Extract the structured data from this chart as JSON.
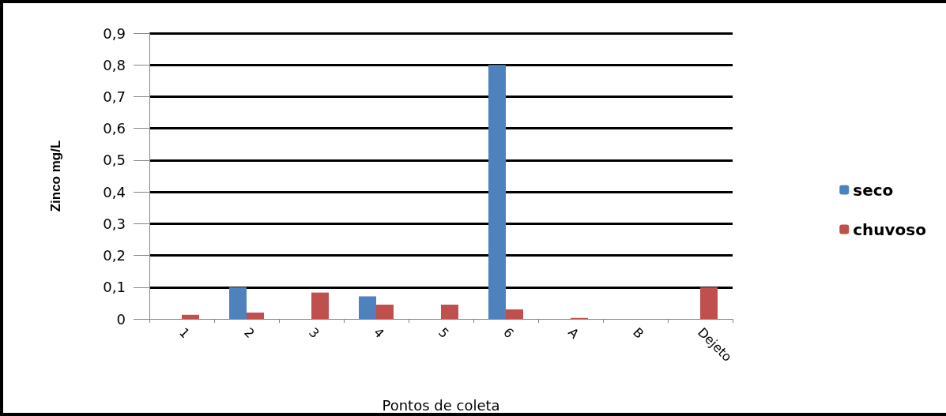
{
  "chart_data": {
    "type": "bar",
    "xlabel": "Pontos de coleta",
    "ylabel": "Zinco mg/L",
    "categories": [
      "1",
      "2",
      "3",
      "4",
      "5",
      "6",
      "A",
      "B",
      "Dejeto"
    ],
    "series": [
      {
        "name": "seco",
        "color": "#4f81bd",
        "values": [
          null,
          0.1,
          null,
          0.071,
          null,
          0.8,
          null,
          null,
          null
        ]
      },
      {
        "name": "chuvoso",
        "color": "#c0504d",
        "values": [
          0.013,
          0.02,
          0.083,
          0.045,
          0.045,
          0.03,
          0.003,
          null,
          0.1
        ]
      }
    ],
    "ylim": [
      0,
      0.9
    ],
    "yticks": [
      0,
      {
        "value": 0.1,
        "label": "0,1"
      },
      {
        "value": 0.2,
        "label": "0,2"
      },
      {
        "value": 0.3,
        "label": "0,3"
      },
      {
        "value": 0.4,
        "label": "0,4"
      },
      {
        "value": 0.5,
        "label": "0,5"
      },
      {
        "value": 0.6,
        "label": "0,6"
      },
      {
        "value": 0.7,
        "label": "0,7"
      },
      {
        "value": 0.8,
        "label": "0,8"
      },
      {
        "value": 0.9,
        "label": "0,9"
      }
    ],
    "grid": "y",
    "legend": "right"
  }
}
